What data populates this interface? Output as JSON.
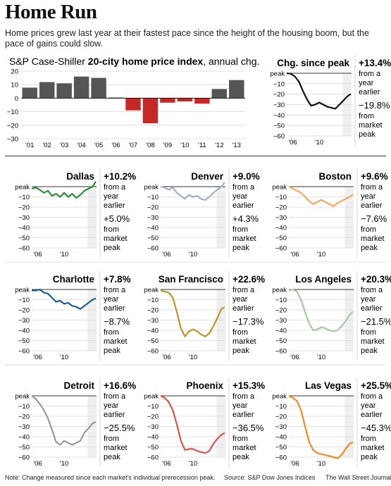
{
  "header": {
    "title": "Home Run",
    "subtitle": "Home prices grew last year at their fastest pace since the height of the housing boom, but the pace of gains could slow."
  },
  "footer": {
    "note": "Note: Change measured since each market's individual prerecession peak.",
    "source": "Source: S&P Dow Jones Indices",
    "credit": "The Wall Street Journal"
  },
  "labels": {
    "from_year": [
      "from a",
      "year",
      "earlier"
    ],
    "from_peak": [
      "from",
      "market",
      "peak"
    ]
  },
  "chart_data": [
    {
      "type": "bar",
      "title_parts": [
        "S&P Case-Shiller ",
        "20-city home price index",
        ", annual chg."
      ],
      "categories": [
        "'01",
        "'02",
        "'03",
        "'04",
        "'05",
        "'06",
        "'07",
        "'08",
        "'09",
        "'10",
        "'11",
        "'12",
        "'13"
      ],
      "values": [
        7.8,
        11.9,
        11.0,
        16.0,
        15.0,
        0.5,
        -9.0,
        -18.5,
        -3.3,
        -2.4,
        -4.0,
        6.8,
        13.4
      ],
      "ylim": [
        -30,
        20
      ],
      "yticks": [
        -30,
        -20,
        -10,
        0,
        10,
        20
      ],
      "colors": {
        "positive": "#555555",
        "negative": "#c62828"
      }
    },
    {
      "type": "line",
      "name": "Chg. since peak",
      "color": "#111111",
      "yoy": "+13.4%",
      "peak_chg": "−19.8%",
      "ylim": [
        -60,
        0
      ],
      "yticks": [
        "peak",
        "−10",
        "−20",
        "−30",
        "−40",
        "−50",
        "−60"
      ],
      "x_ticks": [
        "'06",
        "'10"
      ],
      "x": [
        2006.0,
        2006.5,
        2007.0,
        2007.5,
        2008.0,
        2008.5,
        2009.0,
        2009.5,
        2010.0,
        2010.5,
        2011.0,
        2011.5,
        2012.0,
        2012.5,
        2013.0,
        2013.5,
        2013.9
      ],
      "values": [
        0,
        -0.5,
        -3,
        -8,
        -17,
        -25,
        -31,
        -30,
        -28,
        -30,
        -32,
        -33,
        -34,
        -30,
        -26,
        -22,
        -19.8
      ]
    },
    {
      "type": "line",
      "name": "Dallas",
      "color": "#2e8b3d",
      "yoy": "+10.2%",
      "peak_chg": "+5.0%",
      "ylim": [
        -60,
        0
      ],
      "yticks": [
        "peak",
        "−10",
        "−20",
        "−30",
        "−40",
        "−50",
        "−60"
      ],
      "x_ticks": [
        "'06",
        "'10"
      ],
      "x": [
        2006.0,
        2006.5,
        2007.0,
        2007.5,
        2008.0,
        2008.5,
        2009.0,
        2009.5,
        2010.0,
        2010.5,
        2011.0,
        2011.5,
        2012.0,
        2012.5,
        2013.0,
        2013.5,
        2013.9
      ],
      "values": [
        -2,
        -1,
        -3,
        -6,
        -4,
        -9,
        -7,
        -10,
        -6,
        -10,
        -7,
        -11,
        -8,
        -4,
        -2,
        0,
        5.0
      ]
    },
    {
      "type": "line",
      "name": "Denver",
      "color": "#a3b0c2",
      "yoy": "+9.0%",
      "peak_chg": "+4.3%",
      "ylim": [
        -60,
        0
      ],
      "yticks": [
        "peak",
        "−10",
        "−20",
        "−30",
        "−40",
        "−50",
        "−60"
      ],
      "x_ticks": [
        "'06",
        "'10"
      ],
      "x": [
        2006.0,
        2006.5,
        2007.0,
        2007.5,
        2008.0,
        2008.5,
        2009.0,
        2009.5,
        2010.0,
        2010.5,
        2011.0,
        2011.5,
        2012.0,
        2012.5,
        2013.0,
        2013.5,
        2013.9
      ],
      "values": [
        0,
        -1,
        -3,
        -1,
        -6,
        -9,
        -12,
        -8,
        -10,
        -9,
        -12,
        -13,
        -10,
        -6,
        -3,
        0,
        4.3
      ]
    },
    {
      "type": "line",
      "name": "Boston",
      "color": "#f0a860",
      "yoy": "+9.6%",
      "peak_chg": "−7.6%",
      "ylim": [
        -60,
        0
      ],
      "yticks": [
        "peak",
        "−10",
        "−20",
        "−30",
        "−40",
        "−50",
        "−60"
      ],
      "x_ticks": [
        "'06",
        "'10"
      ],
      "x": [
        2006.0,
        2006.5,
        2007.0,
        2007.5,
        2008.0,
        2008.5,
        2009.0,
        2009.5,
        2010.0,
        2010.5,
        2011.0,
        2011.5,
        2012.0,
        2012.5,
        2013.0,
        2013.5,
        2013.9
      ],
      "values": [
        0,
        -2,
        -4,
        -6,
        -10,
        -14,
        -17,
        -15,
        -13,
        -15,
        -17,
        -19,
        -16,
        -14,
        -12,
        -10,
        -7.6
      ]
    },
    {
      "type": "line",
      "name": "Charlotte",
      "color": "#1f5e8c",
      "yoy": "+7.8%",
      "peak_chg": "−8.7%",
      "ylim": [
        -60,
        0
      ],
      "yticks": [
        "peak",
        "−10",
        "−20",
        "−30",
        "−40",
        "−50",
        "−60"
      ],
      "x_ticks": [
        "'06",
        "'10"
      ],
      "x": [
        2006.0,
        2006.5,
        2007.0,
        2007.5,
        2008.0,
        2008.5,
        2009.0,
        2009.5,
        2010.0,
        2010.5,
        2011.0,
        2011.5,
        2012.0,
        2012.5,
        2013.0,
        2013.5,
        2013.9
      ],
      "values": [
        -1,
        -1,
        0,
        -3,
        -4,
        -8,
        -12,
        -11,
        -14,
        -13,
        -16,
        -17,
        -19,
        -16,
        -13,
        -10,
        -8.7
      ]
    },
    {
      "type": "line",
      "name": "San Francisco",
      "color": "#b8962a",
      "yoy": "+22.6%",
      "peak_chg": "−17.3%",
      "ylim": [
        -60,
        0
      ],
      "yticks": [
        "peak",
        "−10",
        "−20",
        "−30",
        "−40",
        "−50",
        "−60"
      ],
      "x_ticks": [
        "'06",
        "'10"
      ],
      "x": [
        2006.0,
        2006.5,
        2007.0,
        2007.5,
        2008.0,
        2008.5,
        2009.0,
        2009.5,
        2010.0,
        2010.5,
        2011.0,
        2011.5,
        2012.0,
        2012.5,
        2013.0,
        2013.5,
        2013.9
      ],
      "values": [
        -1,
        -2,
        -3,
        -8,
        -22,
        -38,
        -46,
        -41,
        -39,
        -41,
        -44,
        -46,
        -43,
        -36,
        -28,
        -19,
        -17.3
      ]
    },
    {
      "type": "line",
      "name": "Los Angeles",
      "color": "#a8c8a0",
      "yoy": "+20.3%",
      "peak_chg": "−21.5%",
      "ylim": [
        -60,
        0
      ],
      "yticks": [
        "peak",
        "−10",
        "−20",
        "−30",
        "−40",
        "−50",
        "−60"
      ],
      "x_ticks": [
        "'06",
        "'10"
      ],
      "x": [
        2006.0,
        2006.5,
        2007.0,
        2007.5,
        2008.0,
        2008.5,
        2009.0,
        2009.5,
        2010.0,
        2010.5,
        2011.0,
        2011.5,
        2012.0,
        2012.5,
        2013.0,
        2013.5,
        2013.9
      ],
      "values": [
        -1,
        0,
        -2,
        -10,
        -22,
        -33,
        -40,
        -39,
        -37,
        -38,
        -40,
        -41,
        -40,
        -36,
        -31,
        -25,
        -21.5
      ]
    },
    {
      "type": "line",
      "name": "Detroit",
      "color": "#999999",
      "yoy": "+16.6%",
      "peak_chg": "−25.5%",
      "ylim": [
        -60,
        0
      ],
      "yticks": [
        "peak",
        "−10",
        "−20",
        "−30",
        "−40",
        "−50",
        "−60"
      ],
      "x_ticks": [
        "'06",
        "'10"
      ],
      "x": [
        2006.0,
        2006.5,
        2007.0,
        2007.5,
        2008.0,
        2008.5,
        2009.0,
        2009.5,
        2010.0,
        2010.5,
        2011.0,
        2011.5,
        2012.0,
        2012.5,
        2013.0,
        2013.5,
        2013.9
      ],
      "values": [
        0,
        -3,
        -8,
        -14,
        -22,
        -33,
        -45,
        -48,
        -44,
        -46,
        -48,
        -46,
        -44,
        -36,
        -32,
        -27,
        -25.5
      ]
    },
    {
      "type": "line",
      "name": "Phoenix",
      "color": "#d9534f",
      "yoy": "+15.3%",
      "peak_chg": "−36.5%",
      "ylim": [
        -60,
        0
      ],
      "yticks": [
        "peak",
        "−10",
        "−20",
        "−30",
        "−40",
        "−50",
        "−60"
      ],
      "x_ticks": [
        "'06",
        "'10"
      ],
      "x": [
        2006.0,
        2006.5,
        2007.0,
        2007.5,
        2008.0,
        2008.5,
        2009.0,
        2009.5,
        2010.0,
        2010.5,
        2011.0,
        2011.5,
        2012.0,
        2012.5,
        2013.0,
        2013.5,
        2013.9
      ],
      "values": [
        0,
        -2,
        -6,
        -14,
        -28,
        -44,
        -53,
        -52,
        -52,
        -54,
        -55,
        -56,
        -54,
        -47,
        -42,
        -38,
        -36.5
      ]
    },
    {
      "type": "line",
      "name": "Las Vegas",
      "color": "#f08a24",
      "yoy": "+25.5%",
      "peak_chg": "−45.3%",
      "ylim": [
        -60,
        0
      ],
      "yticks": [
        "peak",
        "−10",
        "−20",
        "−30",
        "−40",
        "−50",
        "−60"
      ],
      "x_ticks": [
        "'06",
        "'10"
      ],
      "x": [
        2006.0,
        2006.5,
        2007.0,
        2007.5,
        2008.0,
        2008.5,
        2009.0,
        2009.5,
        2010.0,
        2010.5,
        2011.0,
        2011.5,
        2012.0,
        2012.5,
        2013.0,
        2013.5,
        2013.9
      ],
      "values": [
        0,
        -2,
        -5,
        -14,
        -30,
        -45,
        -53,
        -56,
        -57,
        -58,
        -59,
        -60,
        -61,
        -58,
        -52,
        -47,
        -45.3
      ]
    }
  ]
}
